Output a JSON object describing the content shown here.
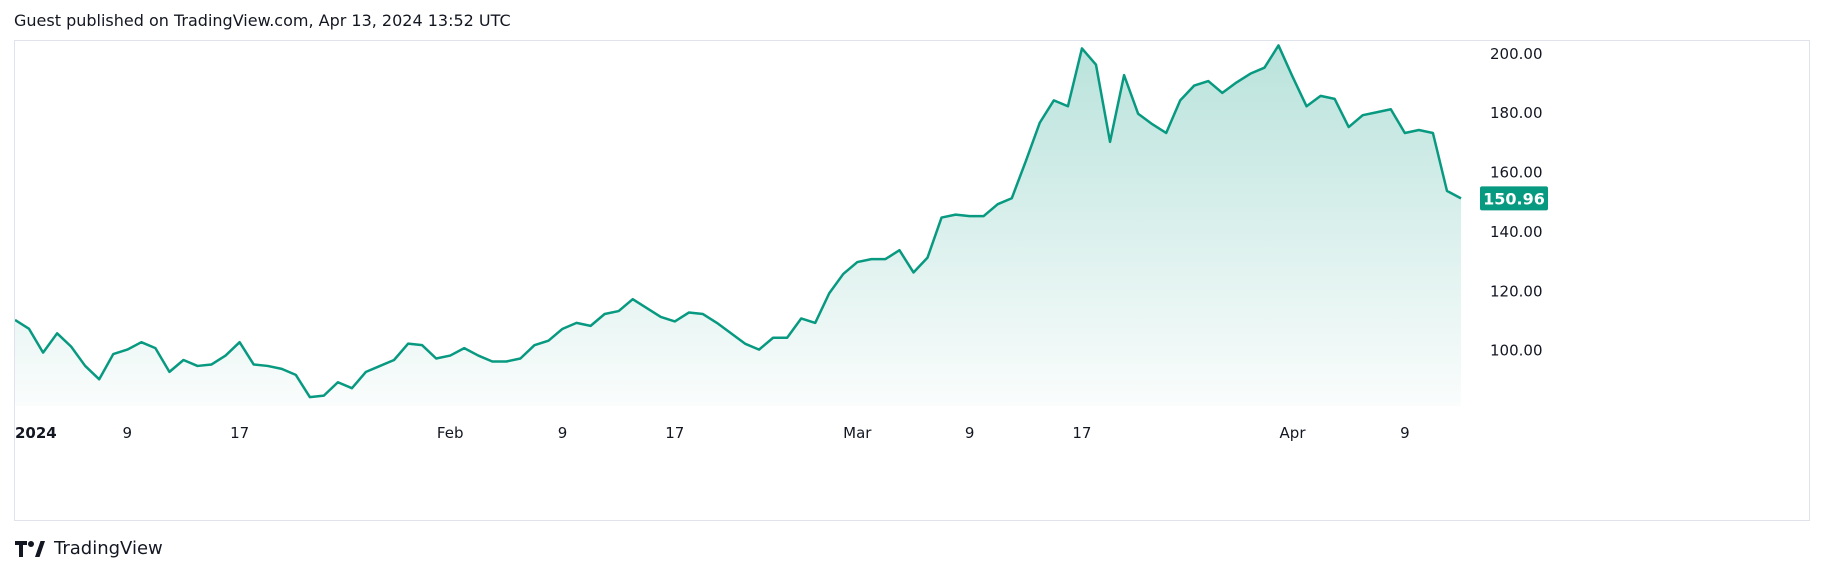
{
  "header": {
    "text": "Guest published on TradingView.com, Apr 13, 2024 13:52 UTC"
  },
  "footer": {
    "brand": "TradingView",
    "logo_icon": "tradingview-logo-icon"
  },
  "colors": {
    "line": "#089981",
    "fill_top": "#089981",
    "badge_bg": "#089981",
    "badge_text": "#ffffff",
    "axis_text": "#131722",
    "border": "#e0e3eb"
  },
  "chart_data": {
    "type": "area",
    "title": "",
    "xlabel": "",
    "ylabel": "",
    "grid": false,
    "x_tick_labels": [
      {
        "label": "2024",
        "index": 0
      },
      {
        "label": "9",
        "index": 8
      },
      {
        "label": "17",
        "index": 16
      },
      {
        "label": "Feb",
        "index": 31
      },
      {
        "label": "9",
        "index": 39
      },
      {
        "label": "17",
        "index": 47
      },
      {
        "label": "Mar",
        "index": 60
      },
      {
        "label": "9",
        "index": 68
      },
      {
        "label": "17",
        "index": 76
      },
      {
        "label": "Apr",
        "index": 91
      },
      {
        "label": "9",
        "index": 99
      }
    ],
    "y_ticks": [
      "100.00",
      "120.00",
      "140.00",
      "160.00",
      "180.00",
      "200.00"
    ],
    "y_tick_values": [
      100,
      120,
      140,
      160,
      180,
      200
    ],
    "ylim": [
      81,
      204
    ],
    "last_value_label": "150.96",
    "last_value": 150.96,
    "values": [
      110.0,
      107.0,
      99.0,
      105.5,
      101.0,
      94.5,
      90.0,
      98.5,
      100.0,
      102.5,
      100.5,
      92.5,
      96.5,
      94.5,
      95.0,
      98.0,
      102.5,
      95.0,
      94.5,
      93.5,
      91.5,
      84.0,
      84.5,
      89.0,
      87.0,
      92.5,
      94.5,
      96.5,
      102.0,
      101.5,
      97.0,
      98.0,
      100.5,
      98.0,
      96.0,
      96.0,
      97.0,
      101.5,
      103.0,
      107.0,
      109.0,
      108.0,
      112.0,
      113.0,
      117.0,
      114.0,
      111.0,
      109.5,
      112.5,
      112.0,
      109.0,
      105.5,
      102.0,
      100.0,
      104.0,
      104.0,
      110.5,
      109.0,
      119.0,
      125.5,
      129.5,
      130.5,
      130.5,
      133.5,
      126.0,
      131.0,
      144.5,
      145.5,
      145.0,
      145.0,
      149.0,
      151.0,
      163.5,
      176.5,
      184.0,
      182.0,
      201.5,
      196.0,
      170.0,
      192.5,
      179.5,
      176.0,
      173.0,
      184.0,
      189.0,
      190.5,
      186.5,
      190.0,
      193.0,
      195.0,
      202.5,
      192.0,
      182.0,
      185.5,
      184.5,
      175.0,
      179.0,
      180.0,
      181.0,
      173.0,
      174.0,
      173.0,
      153.5,
      150.96
    ]
  }
}
